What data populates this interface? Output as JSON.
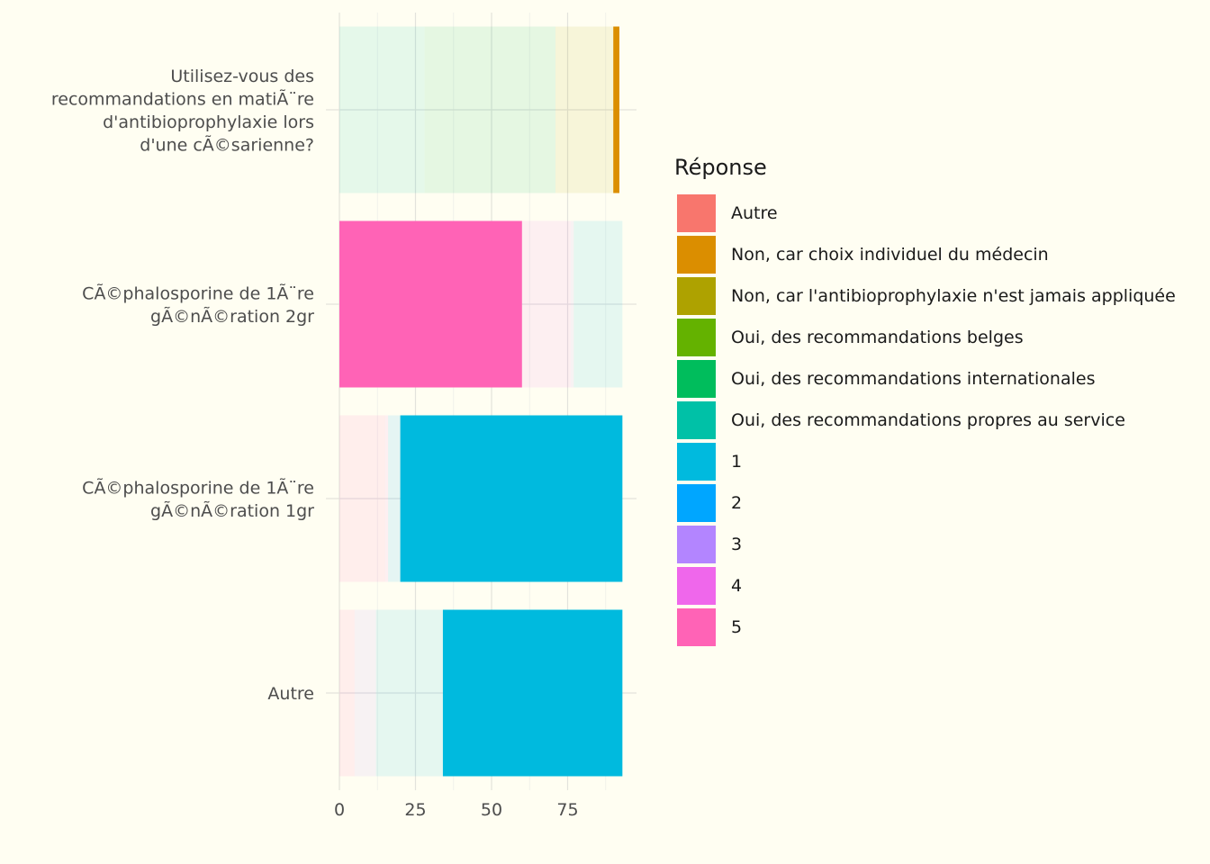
{
  "chart_data": {
    "type": "bar",
    "orientation": "horizontal",
    "stacked": true,
    "xlim": [
      0,
      98
    ],
    "x_ticks": [
      0,
      25,
      50,
      75
    ],
    "grid": true,
    "legend": {
      "title": "Réponse",
      "position": "right",
      "entries": [
        {
          "label": "Autre",
          "color": "#F8766D"
        },
        {
          "label": "Non, car choix individuel du médecin",
          "color": "#DB8E00"
        },
        {
          "label": "Non, car l'antibioprophylaxie n'est jamais appliquée",
          "color": "#AEA200"
        },
        {
          "label": "Oui, des recommandations belges",
          "color": "#64B200"
        },
        {
          "label": "Oui, des recommandations internationales",
          "color": "#00BD5C"
        },
        {
          "label": "Oui, des recommandations propres au service",
          "color": "#00C1A7"
        },
        {
          "label": "1",
          "color": "#00BADE"
        },
        {
          "label": "2",
          "color": "#00A6FF"
        },
        {
          "label": "3",
          "color": "#B385FF"
        },
        {
          "label": "4",
          "color": "#EF67EB"
        },
        {
          "label": "5",
          "color": "#FF63B6"
        }
      ]
    },
    "categories": [
      {
        "label_lines": [
          "Utilisez-vous des",
          "recommandations en matiÃ¨re",
          "d'antibioprophylaxie lors",
          "d'une cÃ©sarienne?"
        ],
        "segments": [
          {
            "series": "Oui, des recommandations propres au service",
            "value": 28,
            "opacity": 0.1
          },
          {
            "series": "Oui, des recommandations internationales",
            "value": 43,
            "opacity": 0.1
          },
          {
            "series": "Oui, des recommandations belges",
            "value": 0,
            "opacity": 0.1
          },
          {
            "series": "Non, car l'antibioprophylaxie n'est jamais appliquée",
            "value": 19,
            "opacity": 0.1
          },
          {
            "series": "Non, car choix individuel du médecin",
            "value": 2,
            "opacity": 1
          }
        ]
      },
      {
        "label_lines": [
          "CÃ©phalosporine de 1Ã¨re",
          "gÃ©nÃ©ration 2gr"
        ],
        "segments": [
          {
            "series": "5",
            "value": 60,
            "opacity": 1
          },
          {
            "series": "4",
            "value": 16,
            "opacity": 0.1
          },
          {
            "series": "3",
            "value": 1,
            "opacity": 0.1
          },
          {
            "series": "1",
            "value": 16,
            "opacity": 0.1
          }
        ]
      },
      {
        "label_lines": [
          "CÃ©phalosporine de 1Ã¨re",
          "gÃ©nÃ©ration 1gr"
        ],
        "segments": [
          {
            "series": "5",
            "value": 15,
            "opacity": 0.1
          },
          {
            "series": "4",
            "value": 1,
            "opacity": 0.1
          },
          {
            "series": "2",
            "value": 4,
            "opacity": 0.1
          },
          {
            "series": "1",
            "value": 73,
            "opacity": 1
          }
        ]
      },
      {
        "label_lines": [
          "Autre"
        ],
        "segments": [
          {
            "series": "5",
            "value": 5,
            "opacity": 0.1
          },
          {
            "series": "3",
            "value": 7,
            "opacity": 0.1
          },
          {
            "series": "1",
            "value": 22,
            "opacity": 0.1
          },
          {
            "series": "1",
            "value": 59,
            "opacity": 1
          }
        ]
      }
    ]
  }
}
